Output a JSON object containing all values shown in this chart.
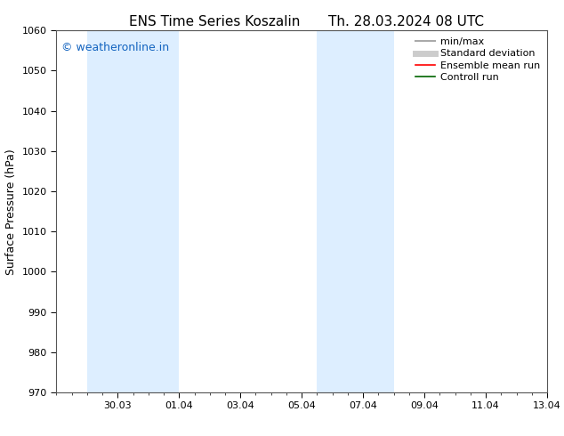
{
  "title_left": "ENS Time Series Koszalin",
  "title_right": "Th. 28.03.2024 08 UTC",
  "ylabel": "Surface Pressure (hPa)",
  "ylim": [
    970,
    1060
  ],
  "yticks": [
    970,
    980,
    990,
    1000,
    1010,
    1020,
    1030,
    1040,
    1050,
    1060
  ],
  "xlim": [
    0,
    16
  ],
  "xtick_labels": [
    "30.03",
    "01.04",
    "03.04",
    "05.04",
    "07.04",
    "09.04",
    "11.04",
    "13.04"
  ],
  "xtick_positions": [
    2,
    4,
    6,
    8,
    10,
    12,
    14,
    16
  ],
  "shaded_regions": [
    {
      "x_start": 1,
      "x_end": 4,
      "color": "#ddeeff"
    },
    {
      "x_start": 8.5,
      "x_end": 11,
      "color": "#ddeeff"
    }
  ],
  "watermark_text": "© weatheronline.in",
  "watermark_color": "#1565C0",
  "legend_entries": [
    {
      "label": "min/max",
      "color": "#aaaaaa",
      "linewidth": 1.5
    },
    {
      "label": "Standard deviation",
      "color": "#cccccc",
      "linewidth": 5
    },
    {
      "label": "Ensemble mean run",
      "color": "#ff0000",
      "linewidth": 1.2
    },
    {
      "label": "Controll run",
      "color": "#006400",
      "linewidth": 1.2
    }
  ],
  "bg_color": "#ffffff",
  "plot_bg_color": "#ffffff",
  "spine_color": "#555555",
  "font_family": "DejaVu Sans",
  "title_fontsize": 11,
  "tick_fontsize": 8,
  "ylabel_fontsize": 9,
  "legend_fontsize": 8,
  "watermark_fontsize": 9
}
